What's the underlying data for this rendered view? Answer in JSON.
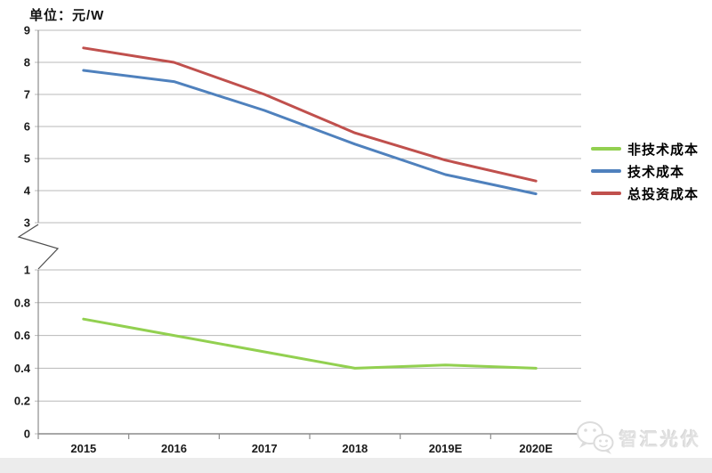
{
  "page": {
    "background": "#ffffff",
    "bottom_band_color": "#ececec"
  },
  "chart_data": {
    "type": "line",
    "title": "单位：元/W",
    "categories": [
      "2015",
      "2016",
      "2017",
      "2018",
      "2019E",
      "2020E"
    ],
    "series": [
      {
        "name": "非技术成本",
        "color": "#92D050",
        "axis": "lower",
        "values": [
          0.7,
          0.6,
          0.5,
          0.4,
          0.42,
          0.4
        ]
      },
      {
        "name": "技术成本",
        "color": "#4F81BD",
        "axis": "upper",
        "values": [
          7.75,
          7.4,
          6.5,
          5.45,
          4.5,
          3.9
        ]
      },
      {
        "name": "总投资成本",
        "color": "#C0504D",
        "axis": "upper",
        "values": [
          8.45,
          8.0,
          7.0,
          5.8,
          4.95,
          4.3
        ]
      }
    ],
    "y_axis": {
      "broken": true,
      "upper_ticks": [
        9,
        8,
        7,
        6,
        5,
        4,
        3
      ],
      "lower_ticks": [
        1,
        0.8,
        0.6,
        0.4,
        0.2,
        0
      ],
      "upper_range": [
        3,
        9
      ],
      "lower_range": [
        0,
        1
      ]
    },
    "xlabel": "",
    "ylabel": "单位：元/W",
    "grid": true,
    "legend_position": "right",
    "legend_entries": [
      "非技术成本",
      "技术成本",
      "总投资成本"
    ],
    "colors": {
      "gridline": "#b8b8b8",
      "axis": "#8c8c8c",
      "tick_label": "#1a1a1a",
      "break_mark": "#4d4d4d"
    }
  },
  "watermark": {
    "text": "智汇光伏",
    "icon": "wechat-chat-bubbles-icon"
  }
}
